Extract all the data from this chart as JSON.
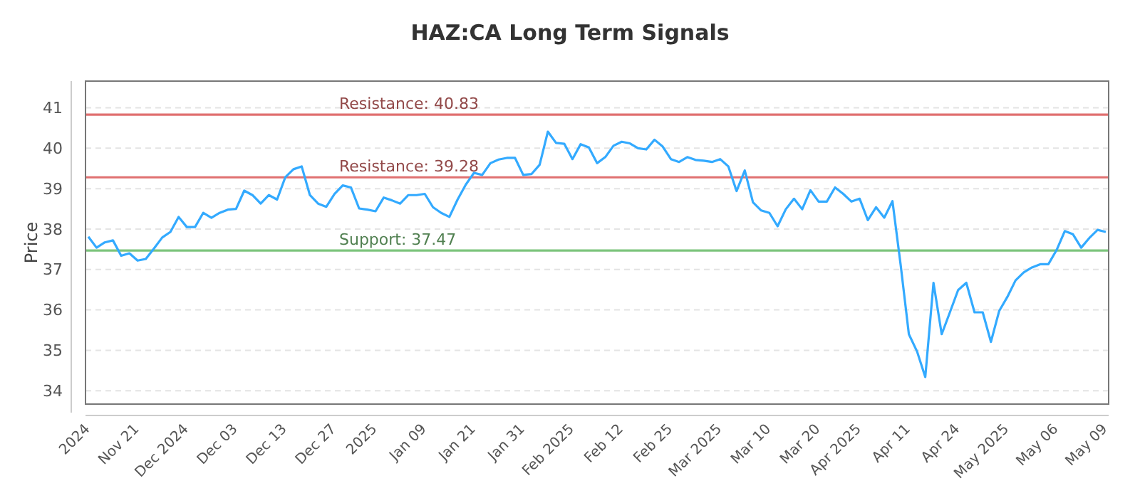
{
  "chart_data": {
    "type": "line",
    "title": "HAZ:CA Long Term Signals",
    "ylabel": "Price",
    "categories": [
      "2024",
      null,
      null,
      null,
      null,
      null,
      "Nov 21",
      null,
      null,
      null,
      null,
      null,
      "Dec 2024",
      null,
      null,
      null,
      null,
      null,
      "Dec 03",
      null,
      null,
      null,
      null,
      null,
      "Dec 13",
      null,
      null,
      null,
      null,
      null,
      "Dec 27",
      null,
      null,
      null,
      null,
      "2025",
      null,
      null,
      null,
      null,
      null,
      "Jan 09",
      null,
      null,
      null,
      null,
      null,
      "Jan 21",
      null,
      null,
      null,
      null,
      null,
      "Jan 31",
      null,
      null,
      null,
      null,
      null,
      "Feb 2025",
      null,
      null,
      null,
      null,
      null,
      "Feb 12",
      null,
      null,
      null,
      null,
      null,
      "Feb 25",
      null,
      null,
      null,
      null,
      null,
      "Mar 2025",
      null,
      null,
      null,
      null,
      null,
      "Mar 10",
      null,
      null,
      null,
      null,
      null,
      "Mar 20",
      null,
      null,
      null,
      null,
      "Apr 2025",
      null,
      null,
      null,
      null,
      null,
      "Apr 11",
      null,
      null,
      null,
      null,
      null,
      "Apr 24",
      null,
      null,
      null,
      null,
      null,
      "May 2025",
      null,
      null,
      null,
      null,
      null,
      "May 06",
      null,
      null,
      null,
      null,
      null,
      "May 09"
    ],
    "series": [
      {
        "color": "#33aaff",
        "values": [
          37.81,
          37.54,
          37.67,
          37.72,
          37.34,
          37.4,
          37.22,
          37.26,
          37.52,
          37.79,
          37.93,
          38.3,
          38.05,
          38.05,
          38.4,
          38.28,
          38.4,
          38.48,
          38.5,
          38.95,
          38.84,
          38.63,
          38.84,
          38.73,
          39.28,
          39.48,
          39.55,
          38.84,
          38.63,
          38.55,
          38.87,
          39.08,
          39.03,
          38.51,
          38.48,
          38.44,
          38.78,
          38.71,
          38.63,
          38.84,
          38.84,
          38.87,
          38.54,
          38.4,
          38.3,
          38.73,
          39.1,
          39.39,
          39.34,
          39.63,
          39.72,
          39.76,
          39.76,
          39.34,
          39.36,
          39.59,
          40.41,
          40.13,
          40.11,
          39.73,
          40.1,
          40.02,
          39.63,
          39.78,
          40.06,
          40.16,
          40.12,
          40.0,
          39.97,
          40.21,
          40.04,
          39.73,
          39.66,
          39.78,
          39.71,
          39.69,
          39.66,
          39.73,
          39.55,
          38.94,
          39.45,
          38.66,
          38.46,
          38.4,
          38.07,
          38.49,
          38.75,
          38.49,
          38.96,
          38.68,
          38.68,
          39.03,
          38.87,
          38.68,
          38.75,
          38.22,
          38.54,
          38.28,
          38.69,
          37.11,
          35.4,
          34.97,
          34.34,
          36.67,
          35.4,
          35.94,
          36.49,
          36.67,
          35.94,
          35.94,
          35.21,
          35.97,
          36.32,
          36.73,
          36.93,
          37.05,
          37.13,
          37.13,
          37.48,
          37.95,
          37.87,
          37.54,
          37.78,
          37.98,
          37.93
        ]
      }
    ],
    "ylim": [
      33.67,
      41.66
    ],
    "yticks": [
      34,
      35,
      36,
      37,
      38,
      39,
      40,
      41
    ],
    "grid": "y",
    "marker": "none",
    "line_style": "solid",
    "ref_lines": [
      {
        "axis": "y",
        "value": 40.83,
        "label": "Resistance: 40.83",
        "color": "#e07070"
      },
      {
        "axis": "y",
        "value": 39.28,
        "label": "Resistance: 39.28",
        "color": "#e07070"
      },
      {
        "axis": "y",
        "value": 37.47,
        "label": "Support: 37.47",
        "color": "#7cc47c"
      }
    ]
  }
}
